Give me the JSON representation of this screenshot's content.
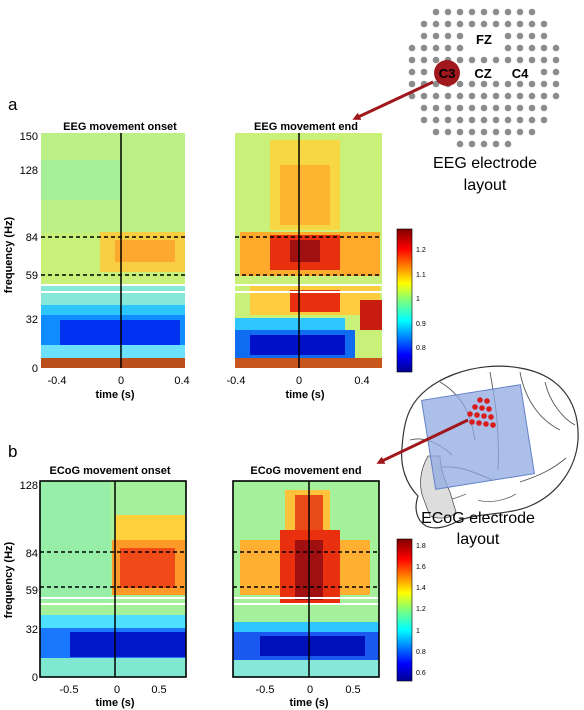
{
  "figure": {
    "panel_a": {
      "letter": "a",
      "left_title": "EEG movement onset",
      "right_title": "EEG movement end",
      "ylabel": "frequency (Hz)",
      "yticks": [
        "150",
        "128",
        "84",
        "59",
        "32",
        "0"
      ],
      "left_xticks": [
        "-0.4",
        "0",
        "0.4"
      ],
      "right_xticks": [
        "-0.4",
        "0",
        "0.4"
      ],
      "xlabel": "time (s)",
      "colorbar_ticks": [
        "1.2",
        "1.1",
        "1",
        "0.9",
        "0.8"
      ]
    },
    "panel_b": {
      "letter": "b",
      "left_title": "ECoG movement onset",
      "right_title": "ECoG movement end",
      "ylabel": "frequency (Hz)",
      "yticks": [
        "128",
        "84",
        "59",
        "32",
        "0"
      ],
      "left_xticks": [
        "-0.5",
        "0",
        "0.5"
      ],
      "right_xticks": [
        "-0.5",
        "0",
        "0.5"
      ],
      "xlabel": "time (s)",
      "colorbar_ticks": [
        "1.8",
        "1.6",
        "1.4",
        "1.2",
        "1",
        "0.8",
        "0.6"
      ]
    },
    "eeg_layout": {
      "labels": [
        "FZ",
        "C3",
        "CZ",
        "C4"
      ],
      "caption_line1": "EEG electrode",
      "caption_line2": "layout"
    },
    "ecog_layout": {
      "caption_line1": "ECoG electrode",
      "caption_line2": "layout"
    }
  },
  "colors": {
    "highlight_electrode": "#a0171d",
    "arrow": "#a0171d",
    "grid_electrode": "#8c8c8c",
    "ecog_grid": "#8fa9e0",
    "ecog_dots": "#d81b1b"
  }
}
